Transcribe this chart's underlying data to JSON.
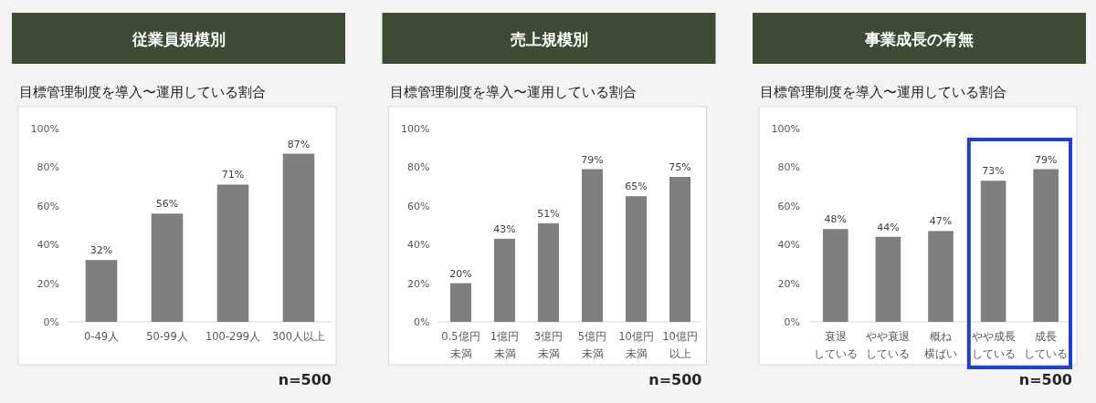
{
  "chart_data": [
    {
      "type": "bar",
      "title": "従業員規模別",
      "subtitle": "目標管理制度を導入〜運用している割合",
      "categories": [
        "0-49人",
        "50-99人",
        "100-299人",
        "300人以上"
      ],
      "values": [
        32,
        56,
        71,
        87
      ],
      "value_labels": [
        "32%",
        "56%",
        "71%",
        "87%"
      ],
      "color": "#7f7f7f",
      "ylim": [
        0,
        100
      ],
      "yticks": [
        {
          "value": 0,
          "label": "0%"
        },
        {
          "value": 20,
          "label": "20%"
        },
        {
          "value": 40,
          "label": "40%"
        },
        {
          "value": 60,
          "label": "60%"
        },
        {
          "value": 80,
          "label": "80%"
        },
        {
          "value": 100,
          "label": "100%"
        }
      ],
      "annotations": [
        "n=500"
      ]
    },
    {
      "type": "bar",
      "title": "売上規模別",
      "subtitle": "目標管理制度を導入〜運用している割合",
      "categories": [
        "0.5億円未満",
        "1億円未満",
        "3億円未満",
        "5億円未満",
        "10億円未満",
        "10億円以上"
      ],
      "values": [
        20,
        43,
        51,
        79,
        65,
        75
      ],
      "value_labels": [
        "20%",
        "43%",
        "51%",
        "79%",
        "65%",
        "75%"
      ],
      "color": "#7f7f7f",
      "ylim": [
        0,
        100
      ],
      "yticks": [
        {
          "value": 0,
          "label": "0%"
        },
        {
          "value": 20,
          "label": "20%"
        },
        {
          "value": 40,
          "label": "40%"
        },
        {
          "value": 60,
          "label": "60%"
        },
        {
          "value": 80,
          "label": "80%"
        },
        {
          "value": 100,
          "label": "100%"
        }
      ],
      "annotations": [
        "n=500"
      ]
    },
    {
      "type": "bar",
      "title": "事業成長の有無",
      "subtitle": "目標管理制度を導入〜運用している割合",
      "categories": [
        "衰退している",
        "やや衰退している",
        "概ね横ばい",
        "やや成長している",
        "成長している"
      ],
      "values": [
        48,
        44,
        47,
        73,
        79
      ],
      "value_labels": [
        "48%",
        "44%",
        "47%",
        "73%",
        "79%"
      ],
      "color": "#7f7f7f",
      "ylim": [
        0,
        100
      ],
      "yticks": [
        {
          "value": 0,
          "label": "0%"
        },
        {
          "value": 20,
          "label": "20%"
        },
        {
          "value": 40,
          "label": "40%"
        },
        {
          "value": 60,
          "label": "60%"
        },
        {
          "value": 80,
          "label": "80%"
        },
        {
          "value": 100,
          "label": "100%"
        }
      ],
      "annotations": [
        "n=500"
      ]
    }
  ]
}
